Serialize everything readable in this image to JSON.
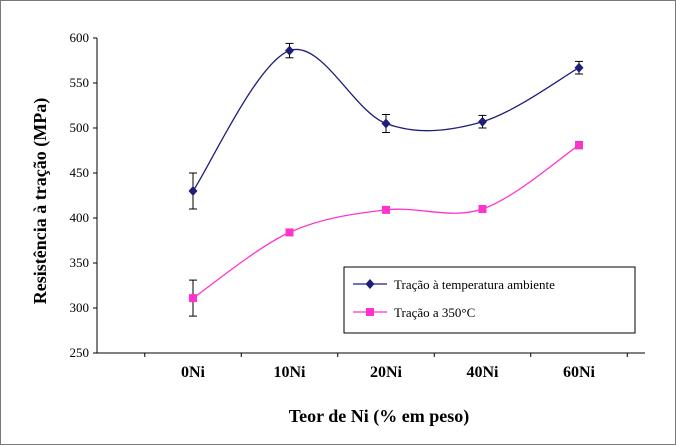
{
  "chart_data": {
    "type": "line",
    "categories": [
      "0Ni",
      "10Ni",
      "20Ni",
      "40Ni",
      "60Ni"
    ],
    "series": [
      {
        "name": "Tração à temperatura ambiente",
        "values": [
          430,
          586,
          505,
          507,
          567
        ],
        "errors": [
          20,
          8,
          10,
          7,
          7
        ],
        "color": "#1f1f7a",
        "marker": "diamond"
      },
      {
        "name": "Tração a 350°C",
        "values": [
          311,
          384,
          409,
          410,
          481
        ],
        "errors": [
          20,
          3,
          3,
          3,
          4
        ],
        "color": "#ff33cc",
        "marker": "square"
      }
    ],
    "xlabel": "Teor de Ni (% em peso)",
    "ylabel": "Resistência à tração (MPa)",
    "ylim": [
      250,
      600
    ],
    "yticks": [
      250,
      300,
      350,
      400,
      450,
      500,
      550,
      600
    ],
    "grid": false,
    "legend_position": "lower-right",
    "smooth": true
  }
}
